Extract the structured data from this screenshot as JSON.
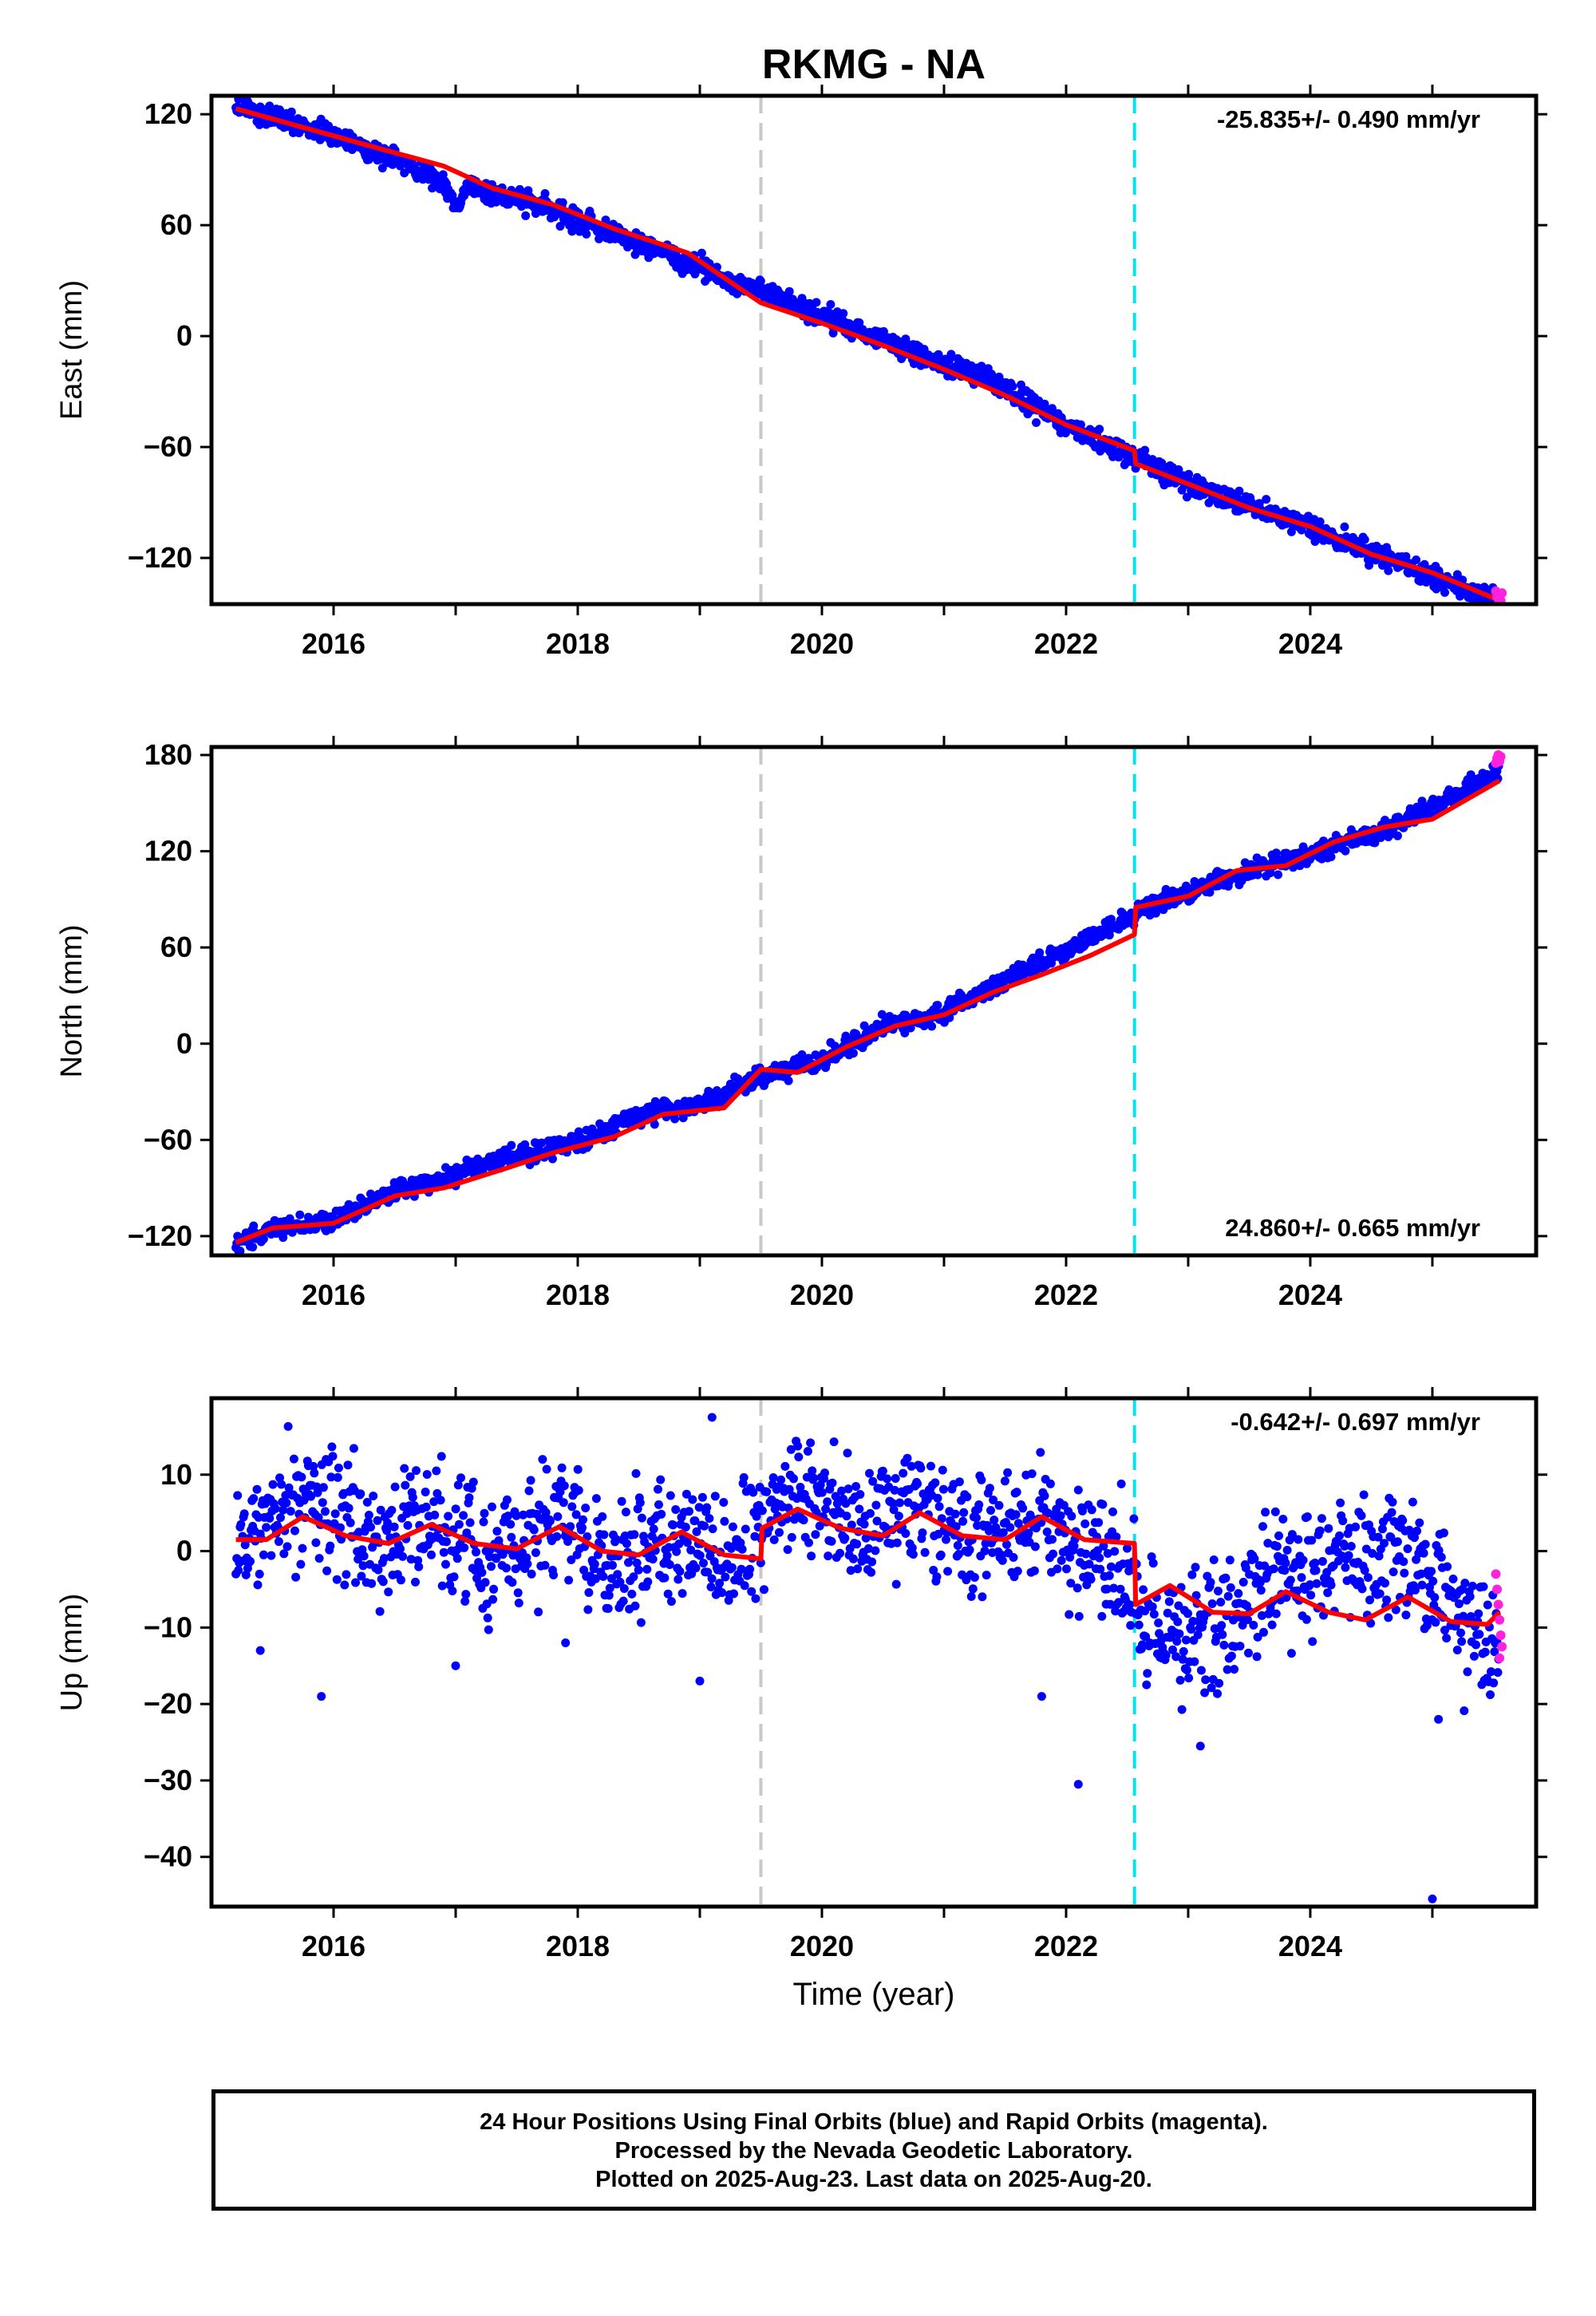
{
  "title": "RKMG - NA",
  "xlabel": "Time (year)",
  "colors": {
    "final": "#0000ff",
    "rapid": "#ff22dd",
    "model": "#ff0000",
    "event_gray": "#c8c8c8",
    "event_cyan": "#00e5ee"
  },
  "footer": {
    "line1": "24 Hour Positions Using Final Orbits (blue) and Rapid Orbits (magenta).",
    "line2": "Processed by the Nevada Geodetic Laboratory.",
    "line3": "Plotted on 2025-Aug-23. Last data on 2025-Aug-20."
  },
  "chart_data": [
    {
      "type": "scatter",
      "ylabel": "East (mm)",
      "rate_label": "-25.835+/- 0.490 mm/yr",
      "rate_position": "top-right",
      "xlim": [
        2015.0,
        2025.85
      ],
      "ylim": [
        -145,
        130
      ],
      "xticks": [
        2016,
        2018,
        2020,
        2022,
        2024
      ],
      "xtick_labels": [
        "2016",
        "2018",
        "2020",
        "2022",
        "2024"
      ],
      "yticks": [
        120,
        60,
        0,
        -60,
        -120
      ],
      "ytick_labels": [
        "120",
        "60",
        "0",
        "−60",
        "−120"
      ],
      "events": [
        {
          "x": 2019.5,
          "color": "gray"
        },
        {
          "x": 2022.56,
          "color": "cyan"
        }
      ],
      "data_start": 2015.2,
      "data_end": 2025.55,
      "final_anchors": [
        [
          2015.2,
          125
        ],
        [
          2015.6,
          117
        ],
        [
          2016.0,
          108
        ],
        [
          2016.5,
          96
        ],
        [
          2016.9,
          84
        ],
        [
          2017.0,
          70
        ],
        [
          2017.1,
          80
        ],
        [
          2017.5,
          74
        ],
        [
          2018.0,
          63
        ],
        [
          2018.5,
          50
        ],
        [
          2019.0,
          37
        ],
        [
          2019.5,
          24
        ],
        [
          2020.0,
          11
        ],
        [
          2020.5,
          -2
        ],
        [
          2021.0,
          -15
        ],
        [
          2021.5,
          -28
        ],
        [
          2022.0,
          -48
        ],
        [
          2022.56,
          -66
        ],
        [
          2023.0,
          -80
        ],
        [
          2023.5,
          -92
        ],
        [
          2024.0,
          -104
        ],
        [
          2024.5,
          -117
        ],
        [
          2025.0,
          -130
        ],
        [
          2025.55,
          -143
        ]
      ],
      "final_noise": 3,
      "model": [
        [
          2015.2,
          123
        ],
        [
          2015.8,
          112
        ],
        [
          2016.4,
          101
        ],
        [
          2016.9,
          92
        ],
        [
          2017.3,
          80
        ],
        [
          2017.8,
          71
        ],
        [
          2018.3,
          58
        ],
        [
          2018.9,
          45
        ],
        [
          2019.5,
          18
        ],
        [
          2020.0,
          7
        ],
        [
          2020.5,
          -5
        ],
        [
          2021.0,
          -18
        ],
        [
          2021.5,
          -32
        ],
        [
          2022.0,
          -48
        ],
        [
          2022.56,
          -62
        ],
        [
          2022.57,
          -69
        ],
        [
          2023.0,
          -80
        ],
        [
          2023.5,
          -93
        ],
        [
          2024.0,
          -103
        ],
        [
          2024.5,
          -118
        ],
        [
          2025.0,
          -128
        ],
        [
          2025.55,
          -143
        ]
      ],
      "rapid": [
        [
          2025.52,
          -138
        ],
        [
          2025.53,
          -141
        ],
        [
          2025.54,
          -145
        ],
        [
          2025.55,
          -140
        ],
        [
          2025.56,
          -143
        ],
        [
          2025.57,
          -139
        ]
      ]
    },
    {
      "type": "scatter",
      "ylabel": "North (mm)",
      "rate_label": "24.860+/- 0.665 mm/yr",
      "rate_position": "bottom-right",
      "xlim": [
        2015.0,
        2025.85
      ],
      "ylim": [
        -132,
        185
      ],
      "xticks": [
        2016,
        2018,
        2020,
        2022,
        2024
      ],
      "xtick_labels": [
        "2016",
        "2018",
        "2020",
        "2022",
        "2024"
      ],
      "yticks": [
        180,
        120,
        60,
        0,
        -60,
        -120
      ],
      "ytick_labels": [
        "180",
        "120",
        "60",
        "0",
        "−60",
        "−120"
      ],
      "events": [
        {
          "x": 2019.5,
          "color": "gray"
        },
        {
          "x": 2022.56,
          "color": "cyan"
        }
      ],
      "data_start": 2015.2,
      "data_end": 2025.55,
      "final_anchors": [
        [
          2015.2,
          -125
        ],
        [
          2015.5,
          -115
        ],
        [
          2016.0,
          -110
        ],
        [
          2016.5,
          -92
        ],
        [
          2017.0,
          -82
        ],
        [
          2017.5,
          -70
        ],
        [
          2018.0,
          -62
        ],
        [
          2018.5,
          -45
        ],
        [
          2019.0,
          -38
        ],
        [
          2019.5,
          -20
        ],
        [
          2020.0,
          -10
        ],
        [
          2020.5,
          10
        ],
        [
          2021.0,
          20
        ],
        [
          2021.5,
          40
        ],
        [
          2022.0,
          58
        ],
        [
          2022.56,
          80
        ],
        [
          2023.0,
          95
        ],
        [
          2023.5,
          108
        ],
        [
          2024.0,
          118
        ],
        [
          2024.5,
          130
        ],
        [
          2025.0,
          148
        ],
        [
          2025.55,
          170
        ]
      ],
      "final_noise": 3,
      "model": [
        [
          2015.2,
          -124
        ],
        [
          2015.5,
          -115
        ],
        [
          2016.0,
          -112
        ],
        [
          2016.5,
          -95
        ],
        [
          2016.9,
          -90
        ],
        [
          2017.4,
          -78
        ],
        [
          2017.8,
          -68
        ],
        [
          2018.3,
          -58
        ],
        [
          2018.7,
          -44
        ],
        [
          2019.2,
          -40
        ],
        [
          2019.5,
          -16
        ],
        [
          2019.8,
          -18
        ],
        [
          2020.2,
          -2
        ],
        [
          2020.6,
          11
        ],
        [
          2021.0,
          18
        ],
        [
          2021.4,
          32
        ],
        [
          2021.8,
          43
        ],
        [
          2022.2,
          55
        ],
        [
          2022.56,
          68
        ],
        [
          2022.57,
          85
        ],
        [
          2023.0,
          92
        ],
        [
          2023.4,
          108
        ],
        [
          2023.8,
          111
        ],
        [
          2024.2,
          126
        ],
        [
          2024.6,
          135
        ],
        [
          2025.0,
          140
        ],
        [
          2025.55,
          164
        ]
      ],
      "rapid": [
        [
          2025.52,
          175
        ],
        [
          2025.53,
          178
        ],
        [
          2025.54,
          180
        ],
        [
          2025.55,
          176
        ],
        [
          2025.56,
          179
        ]
      ]
    },
    {
      "type": "scatter",
      "ylabel": "Up (mm)",
      "rate_label": "-0.642+/- 0.697 mm/yr",
      "rate_position": "top-right",
      "xlim": [
        2015.0,
        2025.85
      ],
      "ylim": [
        -46.5,
        20
      ],
      "xticks": [
        2016,
        2018,
        2020,
        2022,
        2024
      ],
      "xtick_labels": [
        "2016",
        "2018",
        "2020",
        "2022",
        "2024"
      ],
      "yticks": [
        10,
        0,
        -10,
        -20,
        -30,
        -40
      ],
      "ytick_labels": [
        "10",
        "0",
        "−10",
        "−20",
        "−30",
        "−40"
      ],
      "events": [
        {
          "x": 2019.5,
          "color": "gray"
        },
        {
          "x": 2022.56,
          "color": "cyan"
        }
      ],
      "data_start": 2015.2,
      "data_end": 2025.55,
      "final_anchors": [
        [
          2015.2,
          1
        ],
        [
          2015.8,
          7
        ],
        [
          2016.3,
          1
        ],
        [
          2016.8,
          4
        ],
        [
          2017.3,
          -1
        ],
        [
          2017.8,
          4
        ],
        [
          2018.3,
          -2
        ],
        [
          2018.8,
          2
        ],
        [
          2019.3,
          -1
        ],
        [
          2019.8,
          8
        ],
        [
          2020.3,
          3
        ],
        [
          2020.8,
          6
        ],
        [
          2021.3,
          2
        ],
        [
          2021.8,
          3
        ],
        [
          2022.3,
          -1
        ],
        [
          2022.55,
          -3
        ],
        [
          2022.6,
          -10
        ],
        [
          2023.0,
          -13
        ],
        [
          2023.3,
          -10
        ],
        [
          2023.5,
          -6
        ],
        [
          2023.8,
          -3
        ],
        [
          2024.3,
          -1
        ],
        [
          2024.8,
          -1
        ],
        [
          2025.0,
          -5
        ],
        [
          2025.55,
          -13
        ]
      ],
      "final_noise": 4,
      "final_outliers": [
        [
          2015.4,
          -13
        ],
        [
          2015.9,
          -19
        ],
        [
          2017.0,
          -15
        ],
        [
          2017.9,
          -12
        ],
        [
          2019.0,
          -17
        ],
        [
          2019.1,
          17.5
        ],
        [
          2021.8,
          -19
        ],
        [
          2022.1,
          -30.5
        ],
        [
          2023.1,
          -25.5
        ],
        [
          2025.0,
          -45.5
        ],
        [
          2025.05,
          -22
        ]
      ],
      "model": [
        [
          2015.2,
          1.5
        ],
        [
          2015.45,
          1.5
        ],
        [
          2015.75,
          4.5
        ],
        [
          2016.1,
          2
        ],
        [
          2016.45,
          1
        ],
        [
          2016.8,
          3.5
        ],
        [
          2017.15,
          1
        ],
        [
          2017.5,
          0.3
        ],
        [
          2017.85,
          3.2
        ],
        [
          2018.2,
          0
        ],
        [
          2018.5,
          -0.5
        ],
        [
          2018.85,
          2.5
        ],
        [
          2019.2,
          -0.5
        ],
        [
          2019.5,
          -1
        ],
        [
          2019.51,
          3
        ],
        [
          2019.8,
          5.5
        ],
        [
          2020.15,
          3
        ],
        [
          2020.5,
          2
        ],
        [
          2020.8,
          5
        ],
        [
          2021.15,
          2
        ],
        [
          2021.5,
          1.5
        ],
        [
          2021.8,
          4.5
        ],
        [
          2022.15,
          1.5
        ],
        [
          2022.56,
          1
        ],
        [
          2022.57,
          -7
        ],
        [
          2022.85,
          -4.5
        ],
        [
          2023.2,
          -8
        ],
        [
          2023.5,
          -8.2
        ],
        [
          2023.8,
          -5.3
        ],
        [
          2024.15,
          -8
        ],
        [
          2024.45,
          -9
        ],
        [
          2024.8,
          -6
        ],
        [
          2025.15,
          -9.2
        ],
        [
          2025.45,
          -9.6
        ],
        [
          2025.55,
          -8
        ]
      ],
      "rapid": [
        [
          2025.52,
          -3
        ],
        [
          2025.53,
          -5
        ],
        [
          2025.54,
          -7
        ],
        [
          2025.55,
          -9
        ],
        [
          2025.56,
          -11
        ],
        [
          2025.57,
          -12.5
        ],
        [
          2025.55,
          -14
        ]
      ]
    }
  ]
}
